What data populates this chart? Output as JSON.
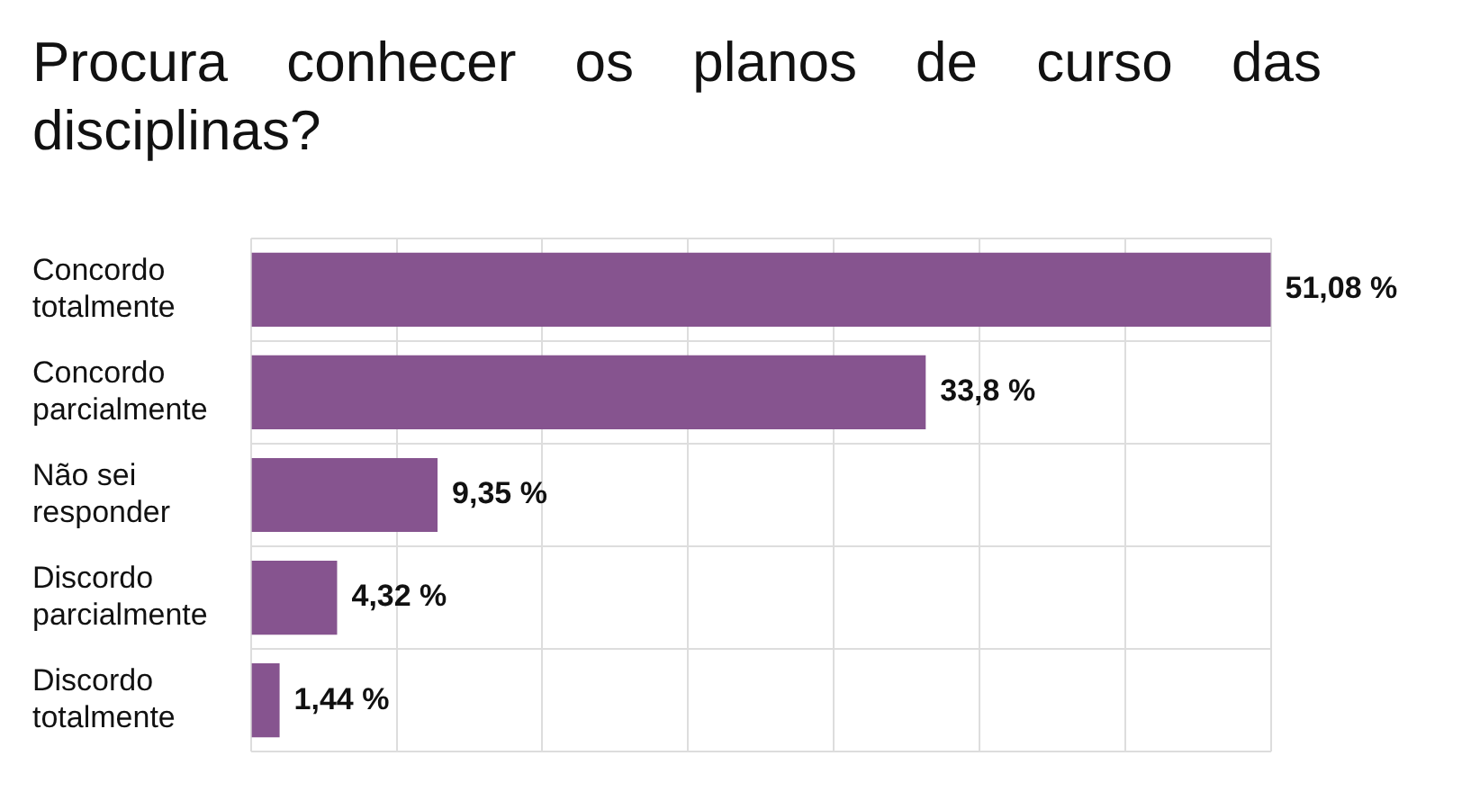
{
  "chart_data": {
    "type": "bar",
    "orientation": "horizontal",
    "title": "Procura conhecer os planos de curso das disciplinas?",
    "categories": [
      "Concordo totalmente",
      "Concordo parcialmente",
      "Não sei responder",
      "Discordo parcialmente",
      "Discordo totalmente"
    ],
    "values": [
      51.08,
      33.8,
      9.35,
      4.32,
      1.44
    ],
    "value_labels": [
      "51,08 %",
      "33,8 %",
      "9,35 %",
      "4,32 %",
      "1,44 %"
    ],
    "color": "#86548f",
    "xlim": [
      0,
      51.1
    ],
    "xticks": [
      {
        "value": 0,
        "label": null
      },
      {
        "value": 7.3,
        "label": null
      },
      {
        "value": 14.6,
        "label": null
      },
      {
        "value": 21.9,
        "label": null
      },
      {
        "value": 29.2,
        "label": null
      },
      {
        "value": 36.5,
        "label": null
      },
      {
        "value": 43.8,
        "label": null
      },
      {
        "value": 51.1,
        "label": null
      }
    ],
    "grid": true,
    "legend": false,
    "tick_labels": "y"
  }
}
